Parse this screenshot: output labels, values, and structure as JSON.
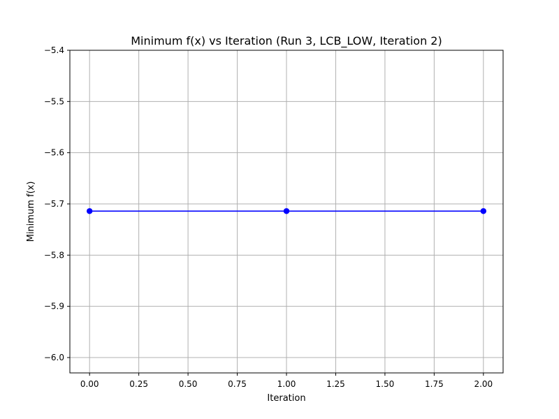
{
  "chart_data": {
    "type": "line",
    "title": "Minimum f(x) vs Iteration (Run 3, LCB_LOW, Iteration 2)",
    "xlabel": "Iteration",
    "ylabel": "Minimum f(x)",
    "xlim": [
      -0.1,
      2.1
    ],
    "ylim": [
      -6.03,
      -5.4
    ],
    "x_ticks": [
      0.0,
      0.25,
      0.5,
      0.75,
      1.0,
      1.25,
      1.5,
      1.75,
      2.0
    ],
    "x_tick_labels": [
      "0.00",
      "0.25",
      "0.50",
      "0.75",
      "1.00",
      "1.25",
      "1.50",
      "1.75",
      "2.00"
    ],
    "y_ticks": [
      -5.4,
      -5.5,
      -5.6,
      -5.7,
      -5.8,
      -5.9,
      -6.0
    ],
    "y_tick_labels": [
      "−5.4",
      "−5.5",
      "−5.6",
      "−5.7",
      "−5.8",
      "−5.9",
      "−6.0"
    ],
    "grid": true,
    "series": [
      {
        "x": [
          0,
          1,
          2
        ],
        "y": [
          -5.714,
          -5.714,
          -5.714
        ],
        "color": "#0000ff",
        "marker": "circle"
      }
    ]
  }
}
